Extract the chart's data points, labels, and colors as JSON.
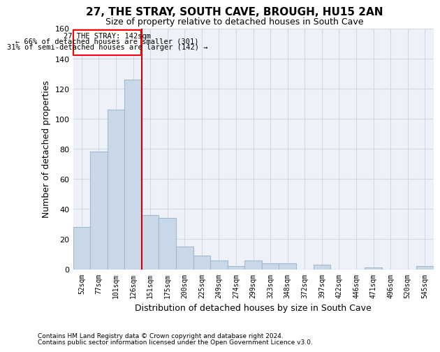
{
  "title": "27, THE STRAY, SOUTH CAVE, BROUGH, HU15 2AN",
  "subtitle": "Size of property relative to detached houses in South Cave",
  "xlabel": "Distribution of detached houses by size in South Cave",
  "ylabel": "Number of detached properties",
  "bar_color": "#c8d8e8",
  "bar_edge_color": "#a0b8d0",
  "grid_color": "#d0d8e8",
  "bg_color": "#eef2f8",
  "marker_color": "#cc0000",
  "categories": [
    "52sqm",
    "77sqm",
    "101sqm",
    "126sqm",
    "151sqm",
    "175sqm",
    "200sqm",
    "225sqm",
    "249sqm",
    "274sqm",
    "299sqm",
    "323sqm",
    "348sqm",
    "372sqm",
    "397sqm",
    "422sqm",
    "446sqm",
    "471sqm",
    "496sqm",
    "520sqm",
    "545sqm"
  ],
  "values": [
    28,
    78,
    106,
    126,
    36,
    34,
    15,
    9,
    6,
    2,
    6,
    4,
    4,
    0,
    3,
    0,
    0,
    1,
    0,
    0,
    2
  ],
  "ylim": [
    0,
    160
  ],
  "yticks": [
    0,
    20,
    40,
    60,
    80,
    100,
    120,
    140,
    160
  ],
  "annotation_title": "27 THE STRAY: 142sqm",
  "annotation_line1": "← 66% of detached houses are smaller (301)",
  "annotation_line2": "31% of semi-detached houses are larger (142) →",
  "footnote1": "Contains HM Land Registry data © Crown copyright and database right 2024.",
  "footnote2": "Contains public sector information licensed under the Open Government Licence v3.0.",
  "marker_bar_index": 3.5
}
